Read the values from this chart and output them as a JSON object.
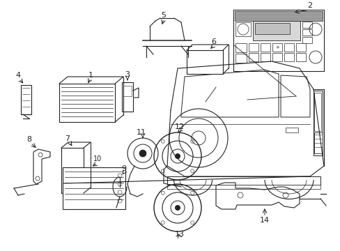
{
  "bg_color": "#ffffff",
  "lc": "#222222",
  "lw": 0.8,
  "figsize": [
    4.89,
    3.6
  ],
  "dpi": 100
}
